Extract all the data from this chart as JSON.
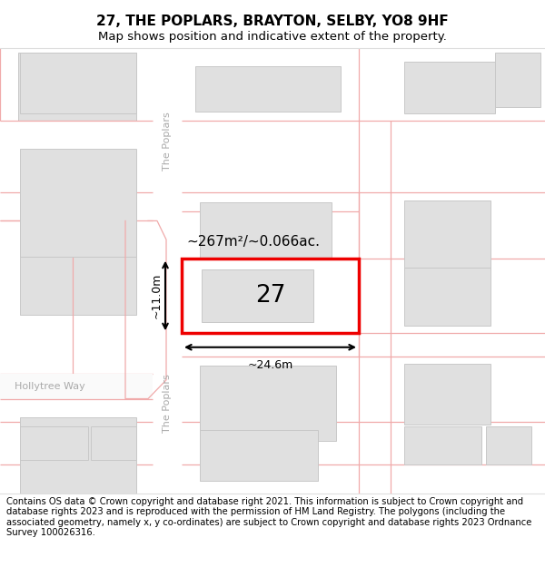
{
  "title_line1": "27, THE POPLARS, BRAYTON, SELBY, YO8 9HF",
  "title_line2": "Map shows position and indicative extent of the property.",
  "footer_text": "Contains OS data © Crown copyright and database right 2021. This information is subject to Crown copyright and database rights 2023 and is reproduced with the permission of HM Land Registry. The polygons (including the associated geometry, namely x, y co-ordinates) are subject to Crown copyright and database rights 2023 Ordnance Survey 100026316.",
  "map_bg": "#ffffff",
  "rc": "#f0aaaa",
  "bf": "#e0e0e0",
  "be": "#c8c8c8",
  "hf": "#ffffff",
  "he": "#ee0000",
  "lbl_street": "The Poplars",
  "lbl_road": "Hollytree Way",
  "lbl_plot": "27",
  "lbl_area": "~267m²/~0.066ac.",
  "lbl_width": "~24.6m",
  "lbl_height": "~11.0m",
  "title_fs": 11,
  "sub_fs": 9.5,
  "footer_fs": 7.2
}
